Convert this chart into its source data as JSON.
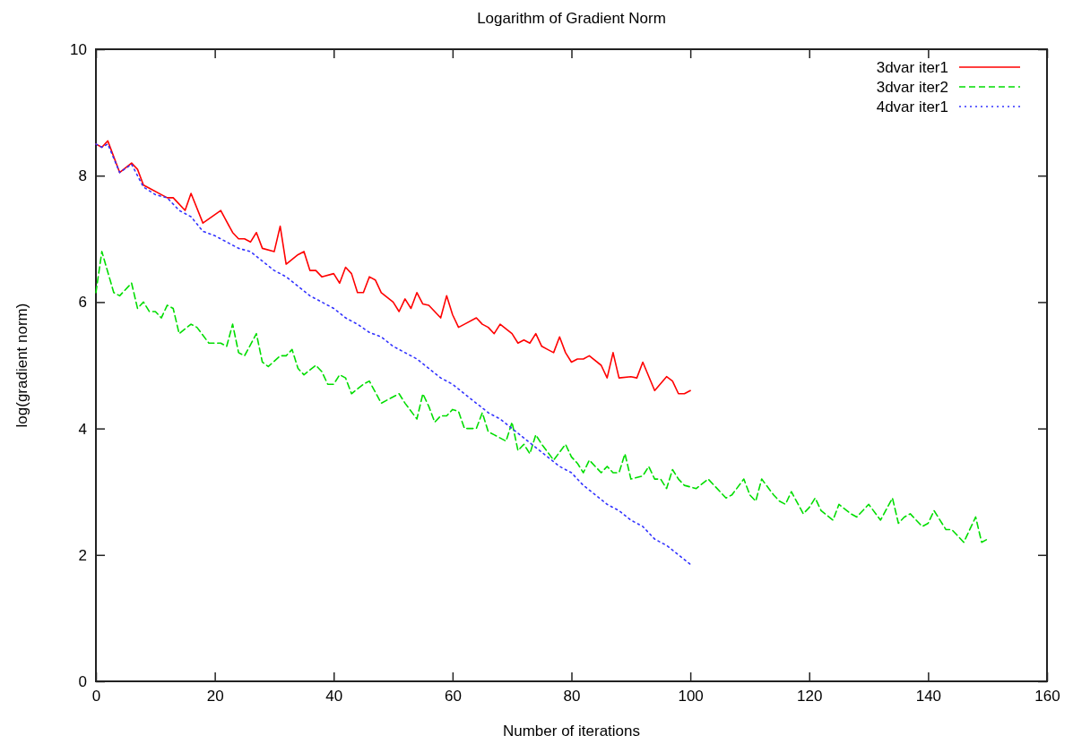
{
  "chart_data": {
    "type": "line",
    "title": "Logarithm of Gradient Norm",
    "xlabel": "Number of iterations",
    "ylabel": "log(gradient norm)",
    "xlim": [
      0,
      160
    ],
    "xticks": [
      0,
      20,
      40,
      60,
      80,
      100,
      120,
      140,
      160
    ],
    "ylim": [
      0,
      10
    ],
    "yticks": [
      0,
      2,
      4,
      6,
      8,
      10
    ],
    "grid": false,
    "legend": "top right",
    "marker": "none",
    "series": [
      {
        "name": "3dvar iter1",
        "color": "#ff0000",
        "line_style": "solid",
        "x": [
          0,
          1,
          2,
          4,
          6,
          7,
          8,
          9,
          11,
          12,
          13,
          15,
          16,
          18,
          21,
          23,
          24,
          25,
          26,
          27,
          28,
          30,
          31,
          32,
          34,
          35,
          36,
          37,
          38,
          40,
          41,
          42,
          43,
          44,
          45,
          46,
          47,
          48,
          50,
          51,
          52,
          53,
          54,
          55,
          56,
          58,
          59,
          60,
          61,
          62,
          64,
          65,
          66,
          67,
          68,
          70,
          71,
          72,
          73,
          74,
          75,
          76,
          77,
          78,
          79,
          80,
          81,
          82,
          83,
          85,
          86,
          87,
          88,
          90,
          91,
          92,
          94,
          96,
          97,
          98,
          99,
          100
        ],
        "values": [
          8.5,
          8.45,
          8.55,
          8.05,
          8.2,
          8.1,
          7.85,
          7.8,
          7.7,
          7.65,
          7.65,
          7.45,
          7.72,
          7.25,
          7.45,
          7.1,
          7.0,
          7.0,
          6.95,
          7.1,
          6.85,
          6.8,
          7.2,
          6.6,
          6.75,
          6.8,
          6.5,
          6.5,
          6.4,
          6.45,
          6.3,
          6.55,
          6.45,
          6.15,
          6.15,
          6.4,
          6.35,
          6.15,
          6.0,
          5.85,
          6.05,
          5.9,
          6.15,
          5.97,
          5.95,
          5.75,
          6.1,
          5.8,
          5.6,
          5.65,
          5.75,
          5.65,
          5.6,
          5.5,
          5.65,
          5.5,
          5.35,
          5.4,
          5.35,
          5.5,
          5.3,
          5.25,
          5.2,
          5.45,
          5.2,
          5.05,
          5.1,
          5.1,
          5.15,
          5.0,
          4.8,
          5.2,
          4.8,
          4.82,
          4.8,
          5.05,
          4.6,
          4.82,
          4.75,
          4.55,
          4.55,
          4.6
        ]
      },
      {
        "name": "3dvar iter2",
        "color": "#00dd00",
        "line_style": "dashed",
        "x": [
          0,
          1,
          3,
          4,
          6,
          7,
          8,
          9,
          10,
          11,
          12,
          13,
          14,
          16,
          17,
          19,
          21,
          22,
          23,
          24,
          25,
          27,
          28,
          29,
          31,
          32,
          33,
          34,
          35,
          37,
          38,
          39,
          40,
          41,
          42,
          43,
          45,
          46,
          48,
          50,
          51,
          52,
          54,
          55,
          56,
          57,
          58,
          59,
          60,
          61,
          62,
          64,
          65,
          66,
          67,
          69,
          70,
          71,
          72,
          73,
          74,
          75,
          77,
          79,
          80,
          81,
          82,
          83,
          84,
          85,
          86,
          87,
          88,
          89,
          90,
          92,
          93,
          94,
          95,
          96,
          97,
          98,
          99,
          101,
          103,
          105,
          106,
          107,
          109,
          110,
          111,
          112,
          114,
          115,
          116,
          117,
          119,
          120,
          121,
          122,
          124,
          125,
          127,
          128,
          130,
          132,
          134,
          135,
          136,
          137,
          139,
          140,
          141,
          143,
          144,
          146,
          148,
          149,
          150
        ],
        "values": [
          6.15,
          6.8,
          6.15,
          6.1,
          6.3,
          5.9,
          6.0,
          5.85,
          5.85,
          5.75,
          5.95,
          5.9,
          5.5,
          5.65,
          5.6,
          5.35,
          5.35,
          5.3,
          5.65,
          5.2,
          5.15,
          5.5,
          5.05,
          4.98,
          5.15,
          5.15,
          5.25,
          4.95,
          4.85,
          5.0,
          4.9,
          4.7,
          4.7,
          4.85,
          4.8,
          4.55,
          4.7,
          4.75,
          4.4,
          4.5,
          4.55,
          4.4,
          4.15,
          4.55,
          4.35,
          4.1,
          4.2,
          4.2,
          4.3,
          4.27,
          4.0,
          4.0,
          4.25,
          3.95,
          3.9,
          3.8,
          4.1,
          3.65,
          3.75,
          3.6,
          3.9,
          3.75,
          3.5,
          3.75,
          3.55,
          3.45,
          3.3,
          3.5,
          3.4,
          3.3,
          3.4,
          3.3,
          3.3,
          3.6,
          3.2,
          3.25,
          3.4,
          3.2,
          3.2,
          3.05,
          3.35,
          3.2,
          3.1,
          3.05,
          3.2,
          3.0,
          2.9,
          2.95,
          3.2,
          2.95,
          2.85,
          3.2,
          2.95,
          2.85,
          2.8,
          3.0,
          2.65,
          2.75,
          2.9,
          2.7,
          2.55,
          2.8,
          2.65,
          2.6,
          2.8,
          2.55,
          2.9,
          2.5,
          2.6,
          2.65,
          2.45,
          2.5,
          2.7,
          2.4,
          2.4,
          2.2,
          2.6,
          2.2,
          2.25
        ]
      },
      {
        "name": "4dvar iter1",
        "color": "#3333ff",
        "line_style": "dotted",
        "x": [
          0,
          1,
          2,
          4,
          6,
          8,
          10,
          12,
          14,
          16,
          18,
          20,
          22,
          24,
          26,
          28,
          30,
          32,
          34,
          36,
          38,
          40,
          42,
          44,
          46,
          48,
          50,
          52,
          54,
          56,
          58,
          60,
          62,
          64,
          66,
          68,
          70,
          72,
          74,
          76,
          78,
          80,
          82,
          84,
          86,
          88,
          90,
          92,
          94,
          96,
          98,
          100
        ],
        "values": [
          8.5,
          8.45,
          8.5,
          8.05,
          8.18,
          7.82,
          7.7,
          7.65,
          7.45,
          7.35,
          7.12,
          7.05,
          6.95,
          6.85,
          6.8,
          6.65,
          6.5,
          6.4,
          6.25,
          6.1,
          6.0,
          5.9,
          5.75,
          5.65,
          5.52,
          5.45,
          5.3,
          5.2,
          5.1,
          4.95,
          4.8,
          4.7,
          4.55,
          4.4,
          4.25,
          4.15,
          4.0,
          3.85,
          3.7,
          3.55,
          3.4,
          3.3,
          3.1,
          2.95,
          2.8,
          2.7,
          2.55,
          2.45,
          2.25,
          2.15,
          2.0,
          1.85
        ]
      }
    ]
  }
}
